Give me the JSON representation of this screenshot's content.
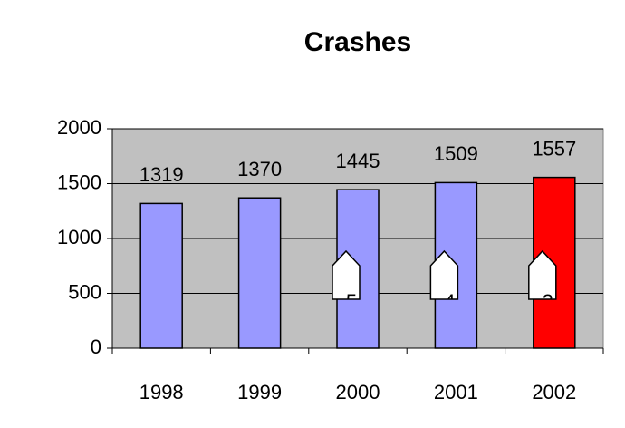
{
  "chart_data": {
    "type": "bar",
    "title": "Crashes",
    "categories": [
      "1998",
      "1999",
      "2000",
      "2001",
      "2002"
    ],
    "values": [
      1319,
      1370,
      1445,
      1509,
      1557
    ],
    "colors": [
      "#9999ff",
      "#9999ff",
      "#9999ff",
      "#9999ff",
      "#ff0000"
    ],
    "ylim": [
      0,
      2000
    ],
    "yticks": [
      0,
      500,
      1000,
      1500,
      2000
    ],
    "grid": true,
    "plot_background": "#c0c0c0",
    "annotations": [
      {
        "category": 2,
        "text": "5"
      },
      {
        "category": 3,
        "text": "4"
      },
      {
        "category": 4,
        "text": "3"
      }
    ]
  }
}
